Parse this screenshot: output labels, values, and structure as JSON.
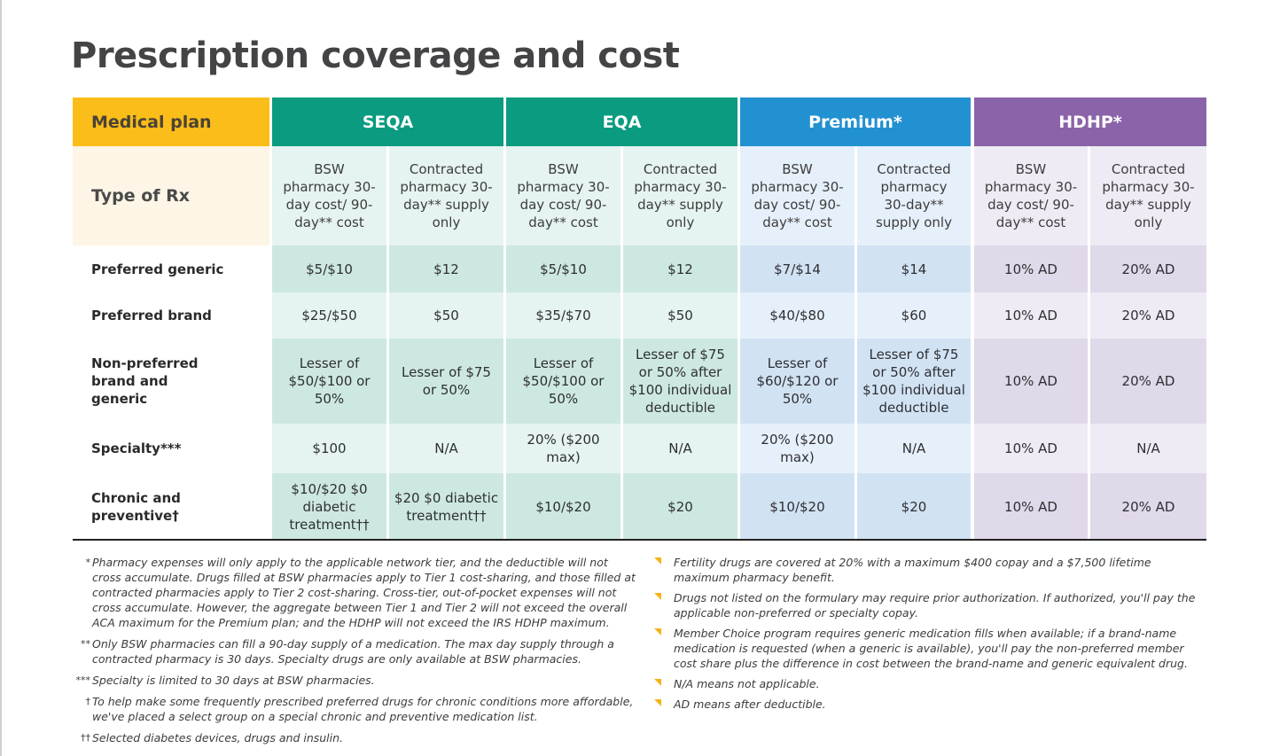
{
  "title": "Prescription coverage and cost",
  "table": {
    "medical_plan_label": "Medical plan",
    "type_of_rx_label": "Type of Rx",
    "plans": [
      {
        "name": "SEQA",
        "color": "#0a9b80"
      },
      {
        "name": "EQA",
        "color": "#0a9b80"
      },
      {
        "name": "Premium*",
        "color": "#2291d1"
      },
      {
        "name": "HDHP*",
        "color": "#8b63a9"
      }
    ],
    "subheaders": {
      "bsw": "BSW pharmacy 30-day cost/ 90-day** cost",
      "contracted": "Contracted pharmacy 30-day** supply only"
    },
    "rows": [
      {
        "label": "Preferred generic",
        "values": [
          "$5/$10",
          "$12",
          "$5/$10",
          "$12",
          "$7/$14",
          "$14",
          "10% AD",
          "20% AD"
        ]
      },
      {
        "label": "Preferred brand",
        "values": [
          "$25/$50",
          "$50",
          "$35/$70",
          "$50",
          "$40/$80",
          "$60",
          "10% AD",
          "20% AD"
        ]
      },
      {
        "label": "Non-preferred brand and generic",
        "values": [
          "Lesser of $50/$100 or 50%",
          "Lesser of $75 or 50%",
          "Lesser of $50/$100 or 50%",
          "Lesser of $75 or 50% after $100 individual deductible",
          "Lesser of $60/$120 or 50%",
          "Lesser of $75 or 50% after $100 individual deductible",
          "10% AD",
          "20% AD"
        ]
      },
      {
        "label": "Specialty***",
        "values": [
          "$100",
          "N/A",
          "20% ($200 max)",
          "N/A",
          "20% ($200 max)",
          "N/A",
          "10% AD",
          "N/A"
        ]
      },
      {
        "label": "Chronic and preventive†",
        "values": [
          "$10/$20 $0 diabetic treatment††",
          "$20 $0 diabetic treatment††",
          "$10/$20",
          "$20",
          "$10/$20",
          "$20",
          "10% AD",
          "20% AD"
        ]
      }
    ]
  },
  "footnotes_left": [
    {
      "marker": "*",
      "text": "Pharmacy expenses will only apply to the applicable network tier, and the deductible will not cross accumulate. Drugs filled at BSW pharmacies apply to Tier 1 cost-sharing, and those filled at contracted pharmacies apply to Tier 2 cost-sharing. Cross-tier, out-of-pocket expenses will not cross accumulate. However, the aggregate between Tier 1 and Tier 2 will not exceed the overall ACA maximum for the Premium plan; and the HDHP will not exceed the IRS HDHP maximum."
    },
    {
      "marker": "**",
      "text": "Only BSW pharmacies can fill a 90-day supply of a medication. The max day supply through a contracted pharmacy is 30 days. Specialty drugs are only available at BSW pharmacies."
    },
    {
      "marker": "***",
      "text": "Specialty is limited to 30 days at BSW pharmacies."
    },
    {
      "marker": "†",
      "text": "To help make some frequently prescribed preferred drugs for chronic conditions more affordable, we've placed a select group on a special chronic and preventive medication list."
    },
    {
      "marker": "††",
      "text": "Selected diabetes devices, drugs and insulin."
    }
  ],
  "footnotes_right": [
    "Fertility drugs are covered at 20% with a maximum $400 copay and a $7,500 lifetime maximum pharmacy benefit.",
    "Drugs not listed on the formulary may require prior authorization. If authorized, you'll pay the applicable non-preferred or specialty copay.",
    "Member Choice program requires generic medication fills when available; if a brand-name medication is requested (when a generic is available), you'll pay the non-preferred member cost share plus the difference in cost between the brand-name and generic equivalent drug.",
    "N/A means not applicable.",
    "AD means after deductible."
  ],
  "colors": {
    "medical_plan": "#fbbd19",
    "seqa": "#0a9b80",
    "eqa": "#0a9b80",
    "premium": "#2291d1",
    "hdhp": "#8b63a9",
    "bullet": "#f4b31a"
  }
}
